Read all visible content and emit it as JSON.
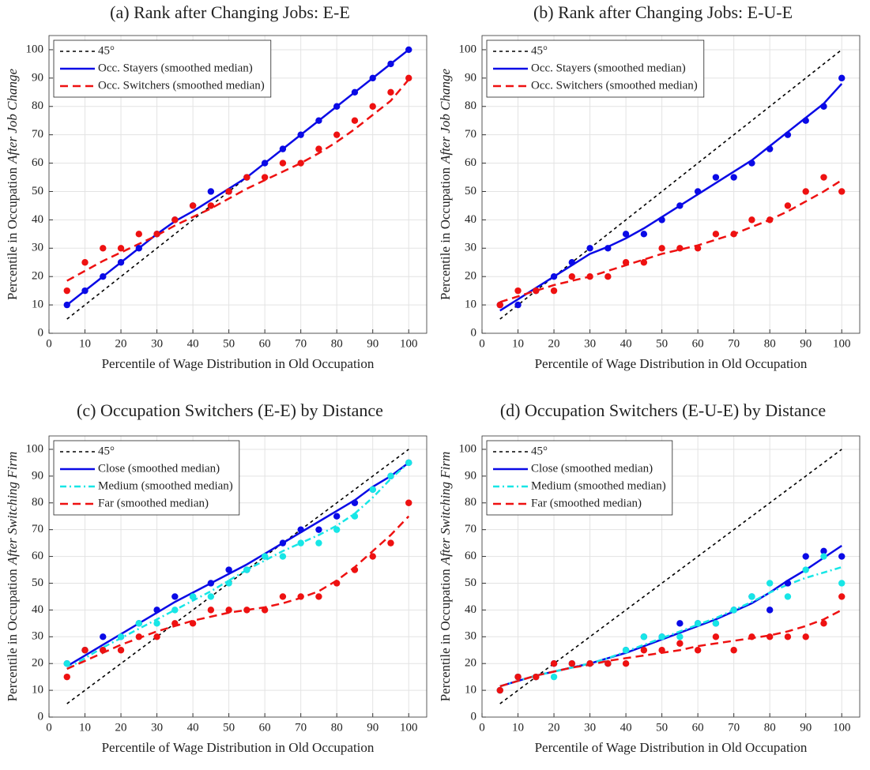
{
  "chart_data": [
    {
      "type": "line",
      "title": "(a) Rank after Changing Jobs: E-E",
      "xlabel": "Percentile of Wage Distribution in Old Occupation",
      "ylabel": {
        "text": "Percentile in Occupation",
        "emphasis": "After Job Change"
      },
      "x": [
        5,
        10,
        15,
        20,
        25,
        30,
        35,
        40,
        45,
        50,
        55,
        60,
        65,
        70,
        75,
        80,
        85,
        90,
        95,
        100
      ],
      "xlim": [
        0,
        105
      ],
      "ylim": [
        0,
        105
      ],
      "xticks": [
        0,
        10,
        20,
        30,
        40,
        50,
        60,
        70,
        80,
        90,
        100
      ],
      "yticks": [
        0,
        10,
        20,
        30,
        40,
        50,
        60,
        70,
        80,
        90,
        100
      ],
      "grid": true,
      "legend": "upper left",
      "series": [
        {
          "name": "45°",
          "color": "#000000",
          "dash": "dashed",
          "values": [
            5,
            10,
            15,
            20,
            25,
            30,
            35,
            40,
            45,
            50,
            55,
            60,
            65,
            70,
            75,
            80,
            85,
            90,
            95,
            100
          ]
        },
        {
          "name": "Occ. Stayers (smoothed median)",
          "color": "#0a0ae6",
          "dash": "solid",
          "values": [
            10,
            15,
            20,
            25,
            30,
            35,
            39.5,
            43,
            47,
            51,
            55,
            60,
            65,
            70,
            75,
            80,
            85,
            90,
            95,
            100
          ],
          "points": [
            10,
            15,
            20,
            25,
            30,
            35,
            40,
            45,
            50,
            50,
            55,
            60,
            65,
            70,
            75,
            80,
            85,
            90,
            95,
            100
          ]
        },
        {
          "name": "Occ. Switchers (smoothed median)",
          "color": "#ee1111",
          "dash": "long-dash",
          "values": [
            18.5,
            22,
            25.5,
            28.5,
            31.5,
            34.5,
            38,
            41,
            44,
            47.5,
            51,
            54,
            57,
            60,
            63.5,
            67.5,
            72,
            77,
            82,
            89.5
          ],
          "points": [
            15,
            25,
            30,
            30,
            35,
            35,
            40,
            45,
            45,
            50,
            55,
            55,
            60,
            60,
            65,
            70,
            75,
            80,
            85,
            90
          ]
        }
      ]
    },
    {
      "type": "line",
      "title": "(b) Rank after Changing Jobs: E-U-E",
      "xlabel": "Percentile of Wage Distribution in Old Occupation",
      "ylabel": {
        "text": "Percentile in Occupation",
        "emphasis": "After Job Change"
      },
      "x": [
        5,
        10,
        15,
        20,
        25,
        30,
        35,
        40,
        45,
        50,
        55,
        60,
        65,
        70,
        75,
        80,
        85,
        90,
        95,
        100
      ],
      "xlim": [
        0,
        105
      ],
      "ylim": [
        0,
        105
      ],
      "xticks": [
        0,
        10,
        20,
        30,
        40,
        50,
        60,
        70,
        80,
        90,
        100
      ],
      "yticks": [
        0,
        10,
        20,
        30,
        40,
        50,
        60,
        70,
        80,
        90,
        100
      ],
      "grid": true,
      "legend": "upper left",
      "series": [
        {
          "name": "45°",
          "color": "#000000",
          "dash": "dashed",
          "values": [
            5,
            10,
            15,
            20,
            25,
            30,
            35,
            40,
            45,
            50,
            55,
            60,
            65,
            70,
            75,
            80,
            85,
            90,
            95,
            100
          ]
        },
        {
          "name": "Occ. Stayers (smoothed median)",
          "color": "#0a0ae6",
          "dash": "solid",
          "values": [
            8,
            12,
            16,
            20,
            24,
            28,
            30.5,
            33.5,
            37,
            41,
            45,
            49,
            53,
            57,
            61,
            66,
            71,
            76,
            81,
            88
          ],
          "points": [
            10,
            10,
            15,
            20,
            25,
            30,
            30,
            35,
            35,
            40,
            45,
            50,
            55,
            55,
            60,
            65,
            70,
            75,
            80,
            90
          ]
        },
        {
          "name": "Occ. Switchers (smoothed median)",
          "color": "#ee1111",
          "dash": "long-dash",
          "values": [
            11,
            13,
            15,
            17,
            18.5,
            20,
            22,
            24,
            26,
            28,
            29.5,
            31,
            33,
            35,
            37.5,
            40,
            43,
            46.5,
            50,
            54
          ],
          "points": [
            10,
            15,
            15,
            15,
            20,
            20,
            20,
            25,
            25,
            30,
            30,
            30,
            35,
            35,
            40,
            40,
            45,
            50,
            55,
            50
          ]
        }
      ]
    },
    {
      "type": "line",
      "title": "(c) Occupation Switchers (E-E) by Distance",
      "xlabel": "Percentile of Wage Distribution in Old Occupation",
      "ylabel": {
        "text": "Percentile in Occupation",
        "emphasis": "After Switching Firm"
      },
      "x": [
        5,
        10,
        15,
        20,
        25,
        30,
        35,
        40,
        45,
        50,
        55,
        60,
        65,
        70,
        75,
        80,
        85,
        90,
        95,
        100
      ],
      "xlim": [
        0,
        105
      ],
      "ylim": [
        0,
        105
      ],
      "xticks": [
        0,
        10,
        20,
        30,
        40,
        50,
        60,
        70,
        80,
        90,
        100
      ],
      "yticks": [
        0,
        10,
        20,
        30,
        40,
        50,
        60,
        70,
        80,
        90,
        100
      ],
      "grid": true,
      "legend": "upper left",
      "series": [
        {
          "name": "45°",
          "color": "#000000",
          "dash": "dashed",
          "values": [
            5,
            10,
            15,
            20,
            25,
            30,
            35,
            40,
            45,
            50,
            55,
            60,
            65,
            70,
            75,
            80,
            85,
            90,
            95,
            100
          ]
        },
        {
          "name": "Close (smoothed median)",
          "color": "#0a0ae6",
          "dash": "solid",
          "values": [
            19,
            23,
            27,
            31,
            35,
            39,
            43,
            46.5,
            50,
            53.5,
            57,
            61,
            65,
            69,
            73,
            77,
            81,
            86,
            90,
            95
          ],
          "points": [
            20,
            25,
            30,
            30,
            35,
            40,
            45,
            45,
            50,
            55,
            55,
            60,
            65,
            70,
            70,
            75,
            80,
            85,
            90,
            95
          ]
        },
        {
          "name": "Medium (smoothed median)",
          "color": "#17e6e6",
          "dash": "dash-dot",
          "values": [
            18,
            22,
            26,
            29.5,
            33,
            36.5,
            40,
            43.5,
            47,
            51,
            55,
            58.5,
            62,
            65,
            68,
            71.5,
            76,
            82,
            89,
            95
          ],
          "points": [
            20,
            25,
            25,
            30,
            35,
            35,
            40,
            45,
            45,
            50,
            55,
            60,
            60,
            65,
            65,
            70,
            75,
            85,
            90,
            95
          ]
        },
        {
          "name": "Far (smoothed median)",
          "color": "#ee1111",
          "dash": "long-dash",
          "values": [
            18,
            21,
            24,
            27,
            29.5,
            32,
            34,
            36,
            37.5,
            39,
            40,
            41,
            42.5,
            44.5,
            47,
            51,
            56,
            62,
            68,
            75
          ],
          "points": [
            15,
            25,
            25,
            25,
            30,
            30,
            35,
            35,
            40,
            40,
            40,
            40,
            45,
            45,
            45,
            50,
            55,
            60,
            65,
            80
          ]
        }
      ]
    },
    {
      "type": "line",
      "title": "(d) Occupation Switchers (E-U-E) by Distance",
      "xlabel": "Percentile of Wage Distribution in Old Occupation",
      "ylabel": {
        "text": "Percentile in Occupation",
        "emphasis": "After Switching Firm"
      },
      "x": [
        5,
        10,
        15,
        20,
        25,
        30,
        35,
        40,
        45,
        50,
        55,
        60,
        65,
        70,
        75,
        80,
        85,
        90,
        95,
        100
      ],
      "xlim": [
        0,
        105
      ],
      "ylim": [
        0,
        105
      ],
      "xticks": [
        0,
        10,
        20,
        30,
        40,
        50,
        60,
        70,
        80,
        90,
        100
      ],
      "yticks": [
        0,
        10,
        20,
        30,
        40,
        50,
        60,
        70,
        80,
        90,
        100
      ],
      "grid": true,
      "legend": "upper left",
      "series": [
        {
          "name": "45°",
          "color": "#000000",
          "dash": "dashed",
          "values": [
            5,
            10,
            15,
            20,
            25,
            30,
            35,
            40,
            45,
            50,
            55,
            60,
            65,
            70,
            75,
            80,
            85,
            90,
            95,
            100
          ]
        },
        {
          "name": "Close (smoothed median)",
          "color": "#0a0ae6",
          "dash": "solid",
          "values": [
            11.5,
            13.5,
            15.5,
            17,
            18.5,
            20,
            22,
            24,
            26.5,
            29,
            31.5,
            34,
            36.5,
            39.5,
            42.5,
            46.5,
            51,
            55,
            59.5,
            64
          ],
          "points": [
            10,
            15,
            15,
            20,
            20,
            20,
            20,
            25,
            30,
            30,
            35,
            35,
            35,
            40,
            45,
            40,
            50,
            60,
            62,
            60
          ]
        },
        {
          "name": "Medium (smoothed median)",
          "color": "#17e6e6",
          "dash": "dash-dot",
          "values": [
            11.5,
            13.5,
            15.5,
            17,
            18.5,
            20,
            22,
            24.5,
            27,
            29.5,
            32,
            34.5,
            37,
            40,
            43,
            46.5,
            49.5,
            52,
            54,
            56
          ],
          "points": [
            10,
            15,
            15,
            15,
            20,
            20,
            20,
            25,
            30,
            30,
            30,
            35,
            35,
            40,
            45,
            50,
            45,
            55,
            60,
            50
          ]
        },
        {
          "name": "Far (smoothed median)",
          "color": "#ee1111",
          "dash": "long-dash",
          "values": [
            11.5,
            13.5,
            15.5,
            17,
            18.5,
            19.5,
            21,
            22,
            23,
            24,
            25,
            26.5,
            27.5,
            28.5,
            29.5,
            30.5,
            32,
            34,
            36.5,
            40
          ],
          "points": [
            10,
            15,
            15,
            20,
            20,
            20,
            20,
            20,
            25,
            25,
            27.5,
            25,
            30,
            25,
            30,
            30,
            30,
            30,
            35,
            45
          ]
        }
      ]
    }
  ]
}
